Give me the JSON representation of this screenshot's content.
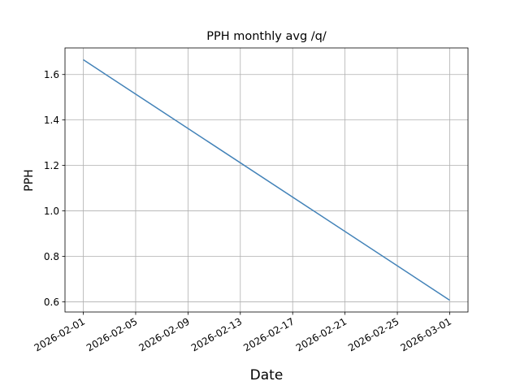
{
  "chart_data": {
    "type": "line",
    "title": "PPH monthly avg /q/",
    "x_label": "Date",
    "y_label": "PPH",
    "x": [
      "2026-02-01",
      "2026-03-01"
    ],
    "series": [
      {
        "name": "PPH",
        "color": "#4282b8",
        "values": [
          1.665,
          0.607
        ]
      }
    ],
    "xlim": [
      "2026-01-30T14:24",
      "2026-03-02T09:36"
    ],
    "xticks": [
      "2026-02-01",
      "2026-02-05",
      "2026-02-09",
      "2026-02-13",
      "2026-02-17",
      "2026-02-21",
      "2026-02-25",
      "2026-03-01"
    ],
    "ylim": [
      0.555,
      1.717
    ],
    "yticks": [
      0.6,
      0.8,
      {
        "value": 1,
        "label": "1.0"
      },
      1.2,
      1.4,
      1.6
    ],
    "grid": true
  }
}
